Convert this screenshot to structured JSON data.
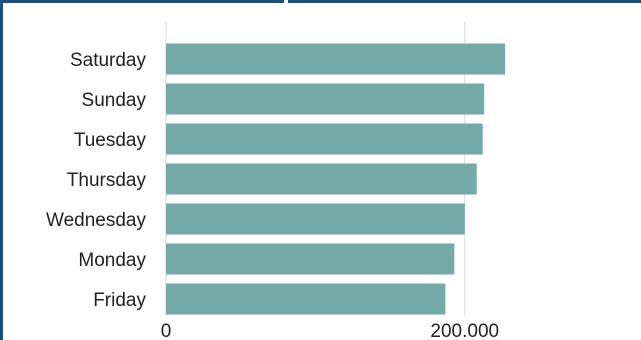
{
  "colors": {
    "bar": "#74a9a7",
    "grid": "#d9d9d9",
    "frame": "#1f4e79"
  },
  "chart_data": {
    "type": "bar",
    "orientation": "horizontal",
    "categories": [
      "Saturday",
      "Sunday",
      "Tuesday",
      "Thursday",
      "Wednesday",
      "Monday",
      "Friday"
    ],
    "values": [
      227000,
      213000,
      212000,
      208000,
      200000,
      193000,
      187000
    ],
    "xticks": [
      0,
      200000
    ],
    "xtick_labels": [
      "0",
      "200.000"
    ],
    "xlim": [
      0,
      245000
    ],
    "title": "",
    "xlabel": "",
    "ylabel": "",
    "grid": true,
    "legend": "none"
  }
}
